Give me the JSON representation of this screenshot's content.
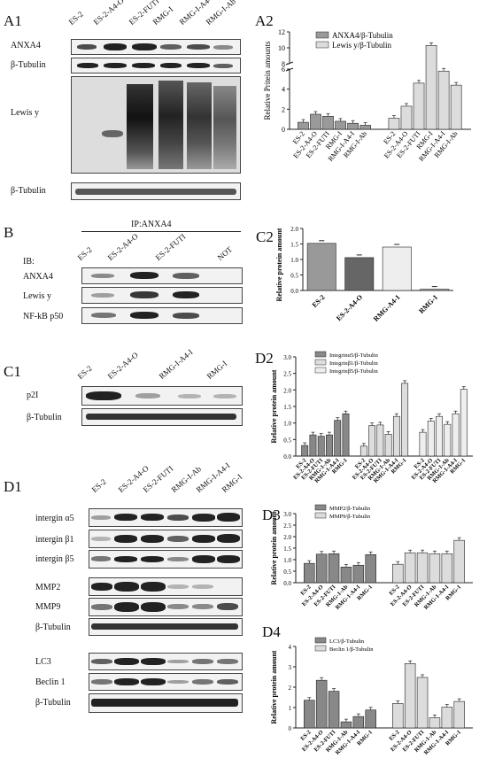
{
  "panels": {
    "A1": "A1",
    "A2": "A2",
    "B": "B",
    "C1": "C1",
    "C2": "C2",
    "D1": "D1",
    "D2": "D2",
    "D3": "D3",
    "D4": "D4"
  },
  "A1": {
    "lanes": [
      "ES-2",
      "ES-2-A4-O",
      "ES-2-FUTI",
      "RMG-I",
      "RMG-I-A4-I",
      "RMG-I-Ab"
    ],
    "rows": [
      "ANXA4",
      "β-Tubulin",
      "Lewis y",
      "β-Tubulin"
    ]
  },
  "B": {
    "ip": "IP:ANXA4",
    "ib": "IB:",
    "lanes": [
      "ES-2",
      "ES-2-A4-O",
      "ES-2-FUTI",
      "NOT"
    ],
    "rows": [
      "ANXA4",
      "Lewis y",
      "NF-kB p50"
    ]
  },
  "C1": {
    "lanes": [
      "ES-2",
      "ES-2-A4-O",
      "RMG-I-A4-I",
      "RMG-I"
    ],
    "rows": [
      "p2I",
      "β-Tubulin"
    ]
  },
  "D1": {
    "lanes": [
      "ES-2",
      "ES-2-A4-O",
      "ES-2-FUTI",
      "RMG-I-Ab",
      "RMG-I-A4-I",
      "RMG-I"
    ],
    "rows": [
      "intergin α5",
      "intergin β1",
      "intergin β5",
      "MMP2",
      "MMP9",
      "β-Tubulin",
      "LC3",
      "Beclin 1",
      "β-Tubulin"
    ]
  },
  "chart_data": [
    {
      "id": "A2",
      "type": "bar",
      "ylabel": "Relative Pritein amounts",
      "ytick_labels": [
        "0",
        "2",
        "4",
        "6",
        "8",
        "10",
        "12"
      ],
      "axis_break": [
        6,
        8
      ],
      "categories": [
        "ES-2",
        "ES-2-A4-O",
        "ES-2-FUTI",
        "RMG-I",
        "RMG-I-A4-I",
        "RMG-I-Ab"
      ],
      "series": [
        {
          "name": "ANXA4/β-Tubulin",
          "values": [
            0.7,
            1.5,
            1.3,
            0.8,
            0.6,
            0.4
          ],
          "errors": [
            0.05,
            0.05,
            0.05,
            0.05,
            0.05,
            0.05
          ]
        },
        {
          "name": "Lewis y/β-Tubulin",
          "values": [
            1.1,
            2.3,
            4.6,
            10.3,
            5.8,
            4.4
          ],
          "errors": [
            0.1,
            0.1,
            0.1,
            0.2,
            0.1,
            0.2
          ]
        }
      ],
      "colors": [
        "#9a9a9a",
        "#dcdcdc"
      ]
    },
    {
      "id": "C2",
      "type": "bar",
      "ylabel": "Relative protein amount",
      "ytick_labels": [
        "0.0",
        "0.5",
        "1.0",
        "1.5",
        "2.0"
      ],
      "ylim": [
        0,
        2.0
      ],
      "categories": [
        "ES-2",
        "ES-2-A4-O",
        "RMG-A4-1",
        "RMG-1"
      ],
      "values": [
        1.52,
        1.06,
        1.4,
        0.04
      ],
      "errors": [
        0.04,
        0.03,
        0.03,
        0.01
      ]
    },
    {
      "id": "D2",
      "type": "bar",
      "ylabel": "Relative protein amount",
      "ytick_labels": [
        "0.0",
        "0.5",
        "1.0",
        "1.5",
        "2.0",
        "2.5",
        "3.0"
      ],
      "ylim": [
        0,
        3.0
      ],
      "categories": [
        "ES-2",
        "ES-2-A4-O",
        "ES-2-FUTI",
        "RMG-1-Ab",
        "RMG-1-A4-I",
        "RMG-1"
      ],
      "series": [
        {
          "name": "Integrinα5/β-Tubulin",
          "values": [
            0.32,
            0.64,
            0.6,
            0.64,
            1.08,
            1.28
          ]
        },
        {
          "name": "Integrinβ1/β-Tubulin",
          "values": [
            0.3,
            0.92,
            0.94,
            0.66,
            1.2,
            2.2
          ]
        },
        {
          "name": "Integrinβ5/β-Tubulin",
          "values": [
            0.72,
            1.06,
            1.2,
            0.96,
            1.28,
            2.02
          ]
        }
      ],
      "colors": [
        "#888888",
        "#dddddd",
        "#eeeeee"
      ]
    },
    {
      "id": "D3",
      "type": "bar",
      "ylabel": "Relative protein amount",
      "ytick_labels": [
        "0.0",
        "0.5",
        "1.0",
        "1.5",
        "2.0",
        "2.5",
        "3.0"
      ],
      "ylim": [
        0,
        3.0
      ],
      "categories": [
        "ES-2",
        "ES-2-A4-O",
        "ES-2-FUTI",
        "RMG-1-Ab",
        "RMG-1-A4-I",
        "RMG-1"
      ],
      "series": [
        {
          "name": "MMP2/β-Tubulin",
          "values": [
            0.84,
            1.24,
            1.26,
            0.68,
            0.76,
            1.22
          ]
        },
        {
          "name": "MMP9/β-Tubulin",
          "values": [
            0.8,
            1.3,
            1.3,
            1.26,
            1.26,
            1.84
          ]
        }
      ],
      "colors": [
        "#888888",
        "#dcdcdc"
      ]
    },
    {
      "id": "D4",
      "type": "bar",
      "ylabel": "Relative protein amount",
      "ytick_labels": [
        "0",
        "1",
        "2",
        "3",
        "4"
      ],
      "ylim": [
        0,
        4
      ],
      "categories": [
        "ES-2",
        "ES-2-A4-O",
        "ES-2-FUTI",
        "RMG-1-Ab",
        "RMG-1-A4-I",
        "RMG-1"
      ],
      "series": [
        {
          "name": "LC3/β-Tubulin",
          "values": [
            1.36,
            2.34,
            1.8,
            0.3,
            0.56,
            0.88
          ]
        },
        {
          "name": "Beclin 1/β-Tubulin",
          "values": [
            1.2,
            3.16,
            2.48,
            0.5,
            1.02,
            1.3
          ]
        }
      ],
      "colors": [
        "#888888",
        "#dcdcdc"
      ]
    }
  ]
}
